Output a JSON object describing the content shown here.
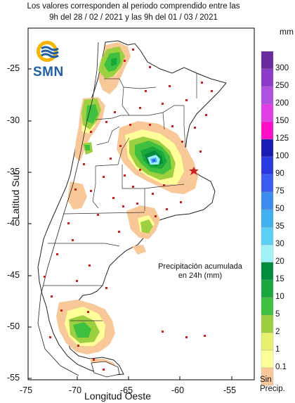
{
  "header": {
    "line1": "Los valores corresponden al periodo comprendido entre las",
    "line2": "9h del 28 / 02 / 2021  y las 9h del 01 / 03 / 2021"
  },
  "logo": {
    "text": "SMN"
  },
  "axes": {
    "x_label": "Longitud Oeste",
    "y_label": "Latitud Sur",
    "x_ticks": [
      "-75",
      "-70",
      "-65",
      "-60",
      "-55"
    ],
    "y_ticks": [
      "-25",
      "-30",
      "-35",
      "-40",
      "-45",
      "-50",
      "-55"
    ]
  },
  "annotation": {
    "line1": "Precipitación acumulada",
    "line2": "en 24h (mm)"
  },
  "legend": {
    "unit": "mm",
    "no_precip_line1": "Sin",
    "no_precip_line2": "Precip.",
    "classes": [
      {
        "label": "300",
        "color": "#6a2aa0"
      },
      {
        "label": "250",
        "color": "#8a3cc8"
      },
      {
        "label": "200",
        "color": "#b050e0"
      },
      {
        "label": "150",
        "color": "#e23ee6"
      },
      {
        "label": "125",
        "color": "#ff10c8"
      },
      {
        "label": "100",
        "color": "#1a1ab4"
      },
      {
        "label": "90",
        "color": "#2a3ae0"
      },
      {
        "label": "75",
        "color": "#3a5cf0"
      },
      {
        "label": "50",
        "color": "#3c8cf0"
      },
      {
        "label": "35",
        "color": "#40b0f0"
      },
      {
        "label": "30",
        "color": "#5cd0f4"
      },
      {
        "label": "20",
        "color": "#a0f0f8"
      },
      {
        "label": "15",
        "color": "#008c3c"
      },
      {
        "label": "10",
        "color": "#1aa83c"
      },
      {
        "label": "5",
        "color": "#40c040"
      },
      {
        "label": "2",
        "color": "#9cd040"
      },
      {
        "label": "1",
        "color": "#e8f070"
      },
      {
        "label": "0.1",
        "color": "#ffff9a"
      },
      {
        "label": "",
        "color": "#f8c898"
      }
    ]
  }
}
